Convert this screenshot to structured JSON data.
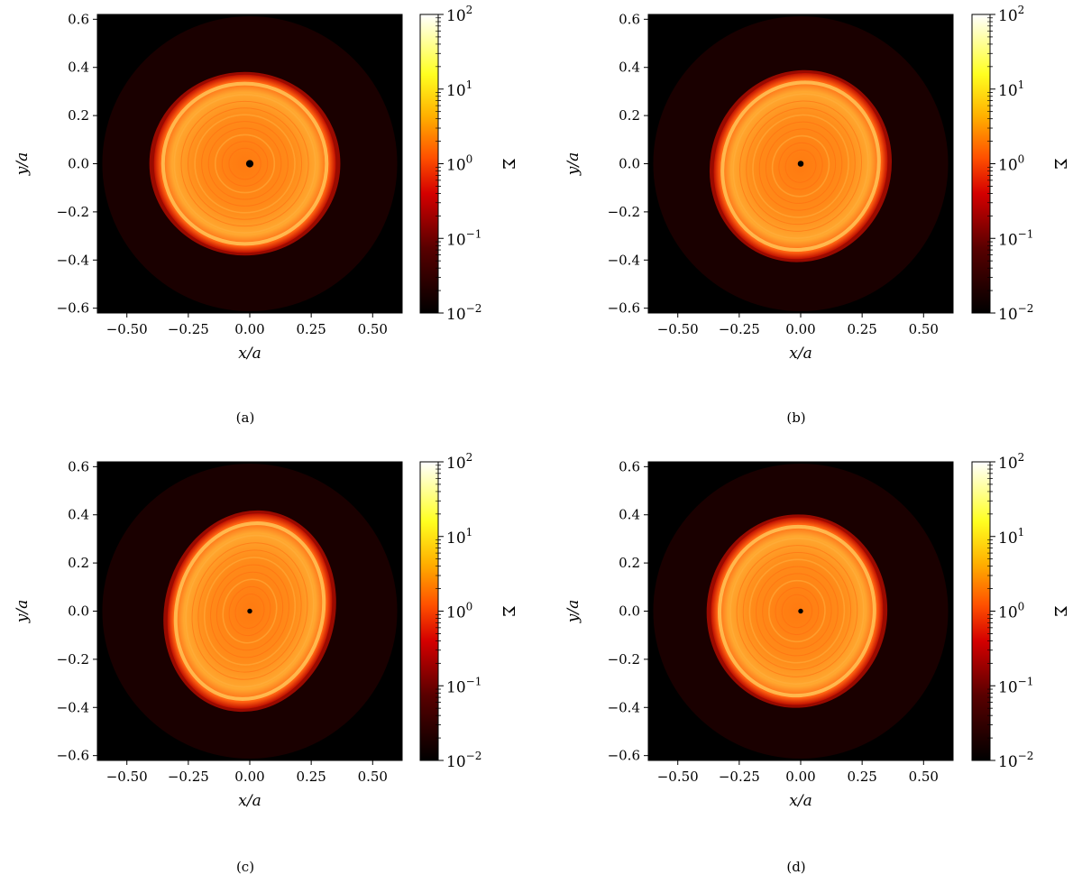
{
  "figure": {
    "colors": {
      "background": "#000000",
      "low": "#1a0000",
      "mid": "#ff2a00",
      "high": "#ffffff"
    }
  },
  "chart_data": [
    {
      "type": "heatmap",
      "panel": "a",
      "caption": "(a)",
      "xlabel": "x/a",
      "ylabel": "y/a",
      "colorbar_label": "Σ",
      "xlim": [
        -0.62,
        0.62
      ],
      "ylim": [
        -0.62,
        0.62
      ],
      "xticks": [
        -0.5,
        -0.25,
        0.0,
        0.25,
        0.5
      ],
      "xtick_labels": [
        "−0.50",
        "−0.25",
        "0.00",
        "0.25",
        "0.50"
      ],
      "yticks": [
        0.6,
        0.4,
        0.2,
        0.0,
        -0.2,
        -0.4,
        -0.6
      ],
      "ytick_labels": [
        "0.6",
        "0.4",
        "0.2",
        "0.0",
        "−0.2",
        "−0.4",
        "−0.6"
      ],
      "colorbar_scale": "log",
      "colorbar_range": [
        0.01,
        100
      ],
      "colorbar_ticks": [
        {
          "base": "10",
          "exp": "2",
          "value": 100
        },
        {
          "base": "10",
          "exp": "1",
          "value": 10
        },
        {
          "base": "10",
          "exp": "0",
          "value": 1
        },
        {
          "base": "10",
          "exp": "−1",
          "value": 0.1
        },
        {
          "base": "10",
          "exp": "−2",
          "value": 0.01
        }
      ],
      "disk": {
        "cx": -0.02,
        "cy": 0.0,
        "rx": 0.37,
        "ry": 0.37,
        "rotation": 0,
        "central_hole_radius": 0.015
      }
    },
    {
      "type": "heatmap",
      "panel": "b",
      "caption": "(b)",
      "xlabel": "x/a",
      "ylabel": "y/a",
      "colorbar_label": "Σ",
      "xlim": [
        -0.62,
        0.62
      ],
      "ylim": [
        -0.62,
        0.62
      ],
      "xticks": [
        -0.5,
        -0.25,
        0.0,
        0.25,
        0.5
      ],
      "xtick_labels": [
        "−0.50",
        "−0.25",
        "0.00",
        "0.25",
        "0.50"
      ],
      "yticks": [
        0.6,
        0.4,
        0.2,
        0.0,
        -0.2,
        -0.4,
        -0.6
      ],
      "ytick_labels": [
        "0.6",
        "0.4",
        "0.2",
        "0.0",
        "−0.2",
        "−0.4",
        "−0.6"
      ],
      "colorbar_scale": "log",
      "colorbar_range": [
        0.01,
        100
      ],
      "colorbar_ticks": [
        {
          "base": "10",
          "exp": "2",
          "value": 100
        },
        {
          "base": "10",
          "exp": "1",
          "value": 10
        },
        {
          "base": "10",
          "exp": "0",
          "value": 1
        },
        {
          "base": "10",
          "exp": "−1",
          "value": 0.1
        },
        {
          "base": "10",
          "exp": "−2",
          "value": 0.01
        }
      ],
      "disk": {
        "cx": 0.0,
        "cy": -0.01,
        "rx": 0.35,
        "ry": 0.39,
        "rotation": 20,
        "central_hole_radius": 0.012
      }
    },
    {
      "type": "heatmap",
      "panel": "c",
      "caption": "(c)",
      "xlabel": "x/a",
      "ylabel": "y/a",
      "colorbar_label": "Σ",
      "xlim": [
        -0.62,
        0.62
      ],
      "ylim": [
        -0.62,
        0.62
      ],
      "xticks": [
        -0.5,
        -0.25,
        0.0,
        0.25,
        0.5
      ],
      "xtick_labels": [
        "−0.50",
        "−0.25",
        "0.00",
        "0.25",
        "0.50"
      ],
      "yticks": [
        0.6,
        0.4,
        0.2,
        0.0,
        -0.2,
        -0.4,
        -0.6
      ],
      "ytick_labels": [
        "0.6",
        "0.4",
        "0.2",
        "0.0",
        "−0.2",
        "−0.4",
        "−0.6"
      ],
      "colorbar_scale": "log",
      "colorbar_range": [
        0.01,
        100
      ],
      "colorbar_ticks": [
        {
          "base": "10",
          "exp": "2",
          "value": 100
        },
        {
          "base": "10",
          "exp": "1",
          "value": 10
        },
        {
          "base": "10",
          "exp": "0",
          "value": 1
        },
        {
          "base": "10",
          "exp": "−1",
          "value": 0.1
        },
        {
          "base": "10",
          "exp": "−2",
          "value": 0.01
        }
      ],
      "disk": {
        "cx": 0.0,
        "cy": 0.0,
        "rx": 0.33,
        "ry": 0.41,
        "rotation": 15,
        "central_hole_radius": 0.01
      }
    },
    {
      "type": "heatmap",
      "panel": "d",
      "caption": "(d)",
      "xlabel": "x/a",
      "ylabel": "y/a",
      "colorbar_label": "Σ",
      "xlim": [
        -0.62,
        0.62
      ],
      "ylim": [
        -0.62,
        0.62
      ],
      "xticks": [
        -0.5,
        -0.25,
        0.0,
        0.25,
        0.5
      ],
      "xtick_labels": [
        "−0.50",
        "−0.25",
        "0.00",
        "0.25",
        "0.50"
      ],
      "yticks": [
        0.6,
        0.4,
        0.2,
        0.0,
        -0.2,
        -0.4,
        -0.6
      ],
      "ytick_labels": [
        "0.6",
        "0.4",
        "0.2",
        "0.0",
        "−0.2",
        "−0.4",
        "−0.6"
      ],
      "colorbar_scale": "log",
      "colorbar_range": [
        0.01,
        100
      ],
      "colorbar_ticks": [
        {
          "base": "10",
          "exp": "2",
          "value": 100
        },
        {
          "base": "10",
          "exp": "1",
          "value": 10
        },
        {
          "base": "10",
          "exp": "0",
          "value": 1
        },
        {
          "base": "10",
          "exp": "−1",
          "value": 0.1
        },
        {
          "base": "10",
          "exp": "−2",
          "value": 0.01
        }
      ],
      "disk": {
        "cx": -0.015,
        "cy": 0.0,
        "rx": 0.35,
        "ry": 0.39,
        "rotation": 5,
        "central_hole_radius": 0.01
      }
    }
  ]
}
